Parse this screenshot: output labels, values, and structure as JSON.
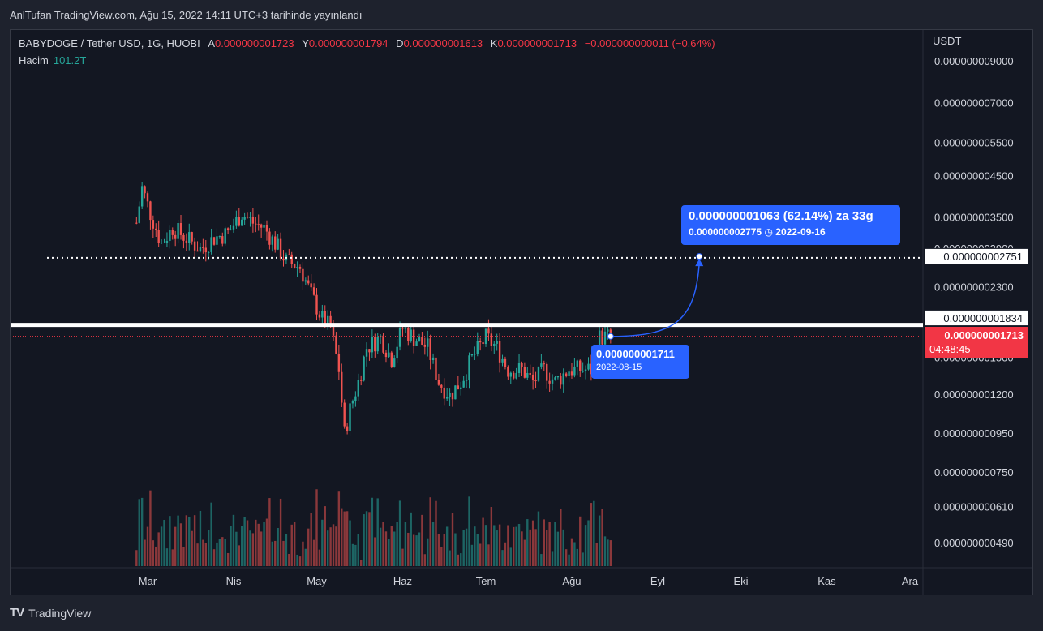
{
  "header": {
    "publish_line": "AnlTufan TradingView.com, Ağu 15, 2022 14:11 UTC+3 tarihinde yayınlandı"
  },
  "legend": {
    "symbol": "BABYDOGE / Tether USD, 1G, HUOBI",
    "open_label": "A",
    "open_value": "0.000000001723",
    "high_label": "Y",
    "high_value": "0.000000001794",
    "low_label": "D",
    "low_value": "0.000000001613",
    "close_label": "K",
    "close_value": "0.000000001713",
    "change": "−0.000000000011 (−0.64%)",
    "volume_label": "Hacim",
    "volume_value": "101.2T"
  },
  "axis": {
    "unit": "USDT",
    "y_ticks": [
      "0.000000009000",
      "0.000000007000",
      "0.000000005500",
      "0.000000004500",
      "0.000000003500",
      "0.000000002900",
      "0.000000002300",
      "0.000000001500",
      "0.000000001200",
      "0.000000000950",
      "0.000000000750",
      "0.000000000610",
      "0.000000000490"
    ],
    "x_ticks": [
      "Mar",
      "Nis",
      "May",
      "Haz",
      "Tem",
      "Ağu",
      "Eyl",
      "Eki",
      "Kas",
      "Ara"
    ]
  },
  "tags": {
    "dotted_level": "0.000000002751",
    "resistance_level": "0.000000001834",
    "last_price": "0.000000001713",
    "countdown": "04:48:45"
  },
  "projection": {
    "headline": "0.000000001063 (62.14%) za 33g",
    "target": "0.000000002775",
    "date": "2022-09-16",
    "clock_icon": "clock-icon"
  },
  "point": {
    "price": "0.000000001711",
    "date": "2022-08-15"
  },
  "footer": {
    "brand": "TradingView"
  },
  "colors": {
    "up": "#26a69a",
    "down": "#ef5350",
    "accent": "#2962ff",
    "bg": "#131722"
  },
  "chart_data": {
    "type": "candlestick",
    "scale": "log",
    "x_label_dates": [
      "2022-03-01",
      "2022-04-01",
      "2022-05-01",
      "2022-06-01",
      "2022-07-01",
      "2022-08-01",
      "2022-09-01",
      "2022-10-01",
      "2022-11-01",
      "2022-12-01"
    ],
    "ylim": [
      4.5e-10,
      9.8e-09
    ],
    "horizontal_levels": [
      2.751e-09,
      1.834e-09,
      1.713e-09
    ],
    "last_candle": {
      "date": "2022-08-15",
      "open": 1.723e-09,
      "high": 1.794e-09,
      "low": 1.613e-09,
      "close": 1.713e-09
    },
    "projection": {
      "from_date": "2022-08-15",
      "from_price": 1.711e-09,
      "to_date": "2022-09-16",
      "to_price": 2.775e-09,
      "change": 1.063e-09,
      "change_pct": 62.14,
      "days": 33
    },
    "price_path": [
      [
        "2022-02-25",
        3.4e-09
      ],
      [
        "2022-02-27",
        4.2e-09
      ],
      [
        "2022-03-02",
        3.6e-09
      ],
      [
        "2022-03-06",
        3e-09
      ],
      [
        "2022-03-10",
        3.3e-09
      ],
      [
        "2022-03-15",
        3.1e-09
      ],
      [
        "2022-03-20",
        2.9e-09
      ],
      [
        "2022-03-25",
        3.1e-09
      ],
      [
        "2022-03-30",
        3.2e-09
      ],
      [
        "2022-04-04",
        3.6e-09
      ],
      [
        "2022-04-08",
        3.4e-09
      ],
      [
        "2022-04-12",
        3.3e-09
      ],
      [
        "2022-04-16",
        3e-09
      ],
      [
        "2022-04-20",
        2.7e-09
      ],
      [
        "2022-04-25",
        2.6e-09
      ],
      [
        "2022-04-29",
        2.2e-09
      ],
      [
        "2022-05-03",
        1.9e-09
      ],
      [
        "2022-05-06",
        1.8e-09
      ],
      [
        "2022-05-09",
        1.4e-09
      ],
      [
        "2022-05-11",
        9.5e-10
      ],
      [
        "2022-05-13",
        1.1e-09
      ],
      [
        "2022-05-16",
        1.3e-09
      ],
      [
        "2022-05-19",
        1.6e-09
      ],
      [
        "2022-05-24",
        1.7e-09
      ],
      [
        "2022-05-28",
        1.5e-09
      ],
      [
        "2022-06-01",
        1.8e-09
      ],
      [
        "2022-06-05",
        1.7e-09
      ],
      [
        "2022-06-10",
        1.6e-09
      ],
      [
        "2022-06-14",
        1.3e-09
      ],
      [
        "2022-06-18",
        1.2e-09
      ],
      [
        "2022-06-22",
        1.3e-09
      ],
      [
        "2022-06-26",
        1.5e-09
      ],
      [
        "2022-07-01",
        1.7e-09
      ],
      [
        "2022-07-05",
        1.6e-09
      ],
      [
        "2022-07-09",
        1.4e-09
      ],
      [
        "2022-07-14",
        1.4e-09
      ],
      [
        "2022-07-18",
        1.3e-09
      ],
      [
        "2022-07-22",
        1.4e-09
      ],
      [
        "2022-07-26",
        1.3e-09
      ],
      [
        "2022-07-31",
        1.4e-09
      ],
      [
        "2022-08-04",
        1.4e-09
      ],
      [
        "2022-08-08",
        1.4e-09
      ],
      [
        "2022-08-11",
        1.7e-09
      ],
      [
        "2022-08-15",
        1.713e-09
      ]
    ]
  }
}
